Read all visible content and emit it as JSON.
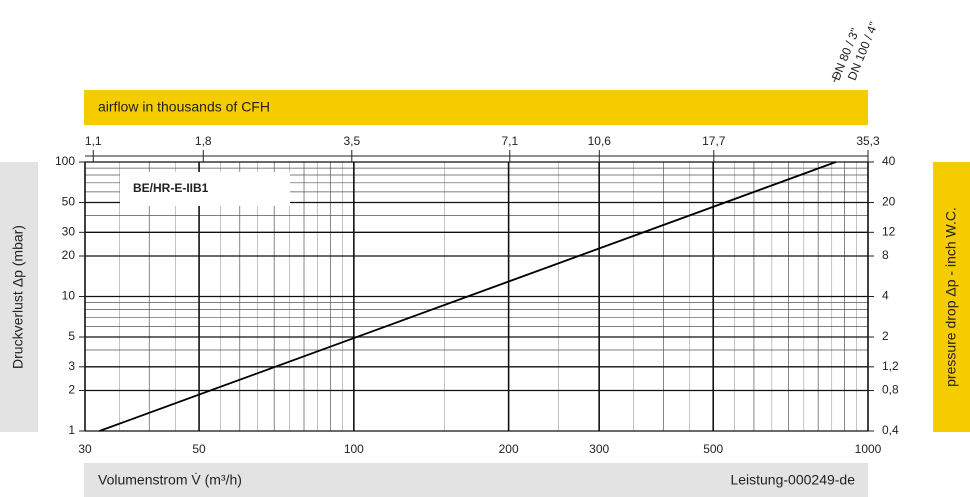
{
  "chart_data": {
    "type": "line",
    "x_label": "Volumenstrom V̇ (m³/h)",
    "y_label": "Druckverlust Δp (mbar)",
    "x2_label": "airflow in thousands of CFH",
    "y2_label": "pressure drop Δp - inch W.C.",
    "document_code": "Leistung-000249-de",
    "annotations": [
      "DN 80 / 3\"",
      "DN 100 / 4\""
    ],
    "x": [
      32,
      866
    ],
    "series": [
      {
        "name": "BE/HR-E-IIB1",
        "color": "#000000",
        "values": [
          1,
          100
        ]
      }
    ],
    "xlim": [
      30,
      1000
    ],
    "xticks": [
      30,
      50,
      100,
      200,
      300,
      500,
      1000
    ],
    "ylim": [
      1,
      100
    ],
    "yticks": [
      1,
      2,
      3,
      5,
      10,
      20,
      30,
      50,
      100
    ],
    "x2lim": [
      1.06,
      35.3
    ],
    "x2ticks": [
      {
        "value": 1.1,
        "label": "1,1"
      },
      {
        "value": 1.8,
        "label": "1,8"
      },
      {
        "value": 3.5,
        "label": "3,5"
      },
      {
        "value": 7.1,
        "label": "7,1"
      },
      {
        "value": 10.6,
        "label": "10,6"
      },
      {
        "value": 17.7,
        "label": "17,7"
      },
      {
        "value": 35.3,
        "label": "35,3"
      }
    ],
    "y2lim": [
      0.4,
      40
    ],
    "y2ticks": [
      {
        "value": 0.4,
        "label": "0,4"
      },
      {
        "value": 0.8,
        "label": "0,8"
      },
      {
        "value": 1.2,
        "label": "1,2"
      },
      2,
      4,
      8,
      12,
      20,
      40
    ],
    "log_x": true,
    "log_y": true,
    "grid": true
  }
}
